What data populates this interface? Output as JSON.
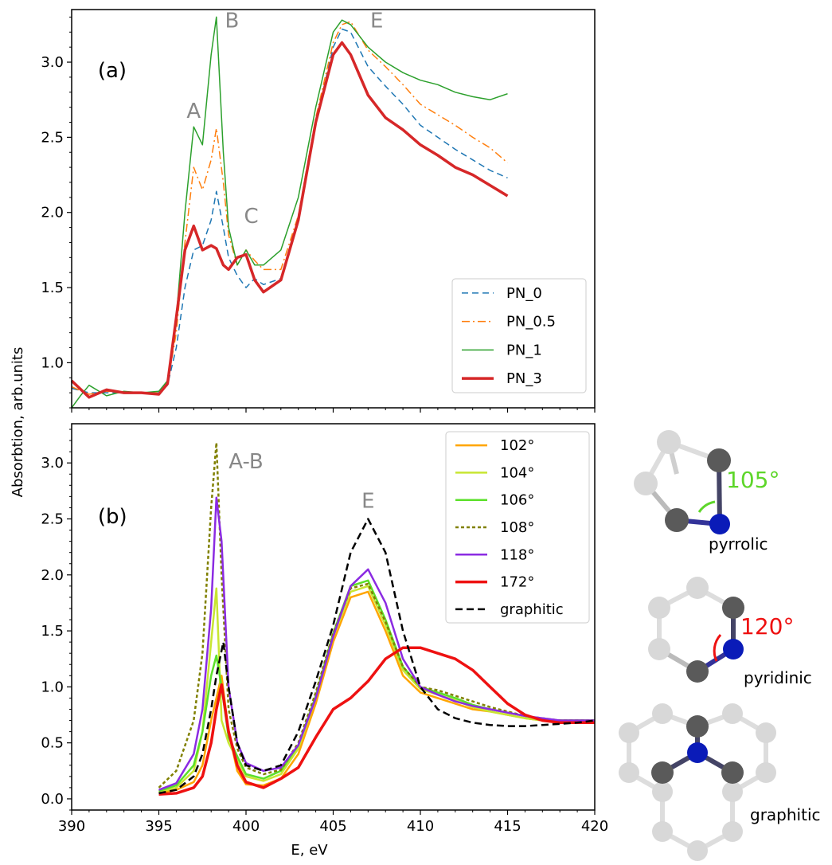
{
  "chart_data": [
    {
      "type": "line",
      "panel_label": "(a)",
      "xlim": [
        390,
        420
      ],
      "ylim": [
        0.7,
        3.35
      ],
      "yticks": [
        1.0,
        1.5,
        2.0,
        2.5,
        3.0
      ],
      "ytick_labels": [
        "1.0",
        "1.5",
        "2.0",
        "2.5",
        "3.0"
      ],
      "xticks": [
        390,
        395,
        400,
        405,
        410,
        415,
        420
      ],
      "show_x_tick_labels": false,
      "grid": false,
      "legend_position": "lower-right",
      "annotations": [
        {
          "text": "A",
          "x": 397.0,
          "y": 2.63
        },
        {
          "text": "B",
          "x": 399.2,
          "y": 3.23
        },
        {
          "text": "C",
          "x": 400.3,
          "y": 1.93
        },
        {
          "text": "E",
          "x": 407.5,
          "y": 3.23
        }
      ],
      "series": [
        {
          "name": "PN_0",
          "color": "#1f77b4",
          "dash": "8,5",
          "width": 1.5,
          "x": [
            390,
            391,
            392,
            393,
            394,
            395,
            395.5,
            396,
            396.5,
            397,
            397.5,
            398,
            398.3,
            398.7,
            399,
            399.5,
            400,
            400.5,
            401,
            402,
            403,
            404,
            405,
            405.5,
            406,
            407,
            408,
            409,
            410,
            411,
            412,
            413,
            414,
            415
          ],
          "y": [
            0.83,
            0.8,
            0.8,
            0.8,
            0.8,
            0.8,
            0.85,
            1.1,
            1.5,
            1.75,
            1.78,
            1.95,
            2.14,
            1.9,
            1.7,
            1.58,
            1.5,
            1.56,
            1.52,
            1.56,
            1.95,
            2.6,
            3.1,
            3.22,
            3.2,
            2.97,
            2.84,
            2.72,
            2.58,
            2.5,
            2.42,
            2.35,
            2.28,
            2.23
          ]
        },
        {
          "name": "PN_0.5",
          "color": "#ff7f0e",
          "dash": "10,4,2,4",
          "width": 1.5,
          "x": [
            390,
            391,
            392,
            393,
            394,
            395,
            395.5,
            396,
            396.5,
            397,
            397.5,
            398,
            398.3,
            398.7,
            399,
            399.5,
            400,
            400.5,
            401,
            402,
            403,
            404,
            405,
            405.5,
            406,
            407,
            408,
            409,
            410,
            411,
            412,
            413,
            414,
            415
          ],
          "y": [
            0.84,
            0.79,
            0.81,
            0.8,
            0.8,
            0.8,
            0.86,
            1.2,
            1.8,
            2.3,
            2.15,
            2.35,
            2.56,
            2.2,
            1.85,
            1.65,
            1.75,
            1.68,
            1.62,
            1.62,
            1.98,
            2.63,
            3.13,
            3.25,
            3.27,
            3.08,
            2.97,
            2.85,
            2.72,
            2.65,
            2.58,
            2.5,
            2.43,
            2.33
          ]
        },
        {
          "name": "PN_1",
          "color": "#2ca02c",
          "dash": "",
          "width": 1.5,
          "x": [
            390,
            390.5,
            391,
            392,
            393,
            394,
            395,
            395.5,
            396,
            396.5,
            397,
            397.5,
            398,
            398.3,
            398.7,
            399,
            399.5,
            400,
            400.5,
            401,
            402,
            403,
            404,
            405,
            405.5,
            406,
            407,
            408,
            409,
            410,
            411,
            412,
            413,
            414,
            415
          ],
          "y": [
            0.7,
            0.78,
            0.85,
            0.78,
            0.81,
            0.8,
            0.81,
            0.88,
            1.3,
            2.0,
            2.57,
            2.45,
            3.05,
            3.3,
            2.4,
            1.9,
            1.65,
            1.75,
            1.65,
            1.65,
            1.75,
            2.1,
            2.7,
            3.2,
            3.28,
            3.25,
            3.1,
            3.0,
            2.93,
            2.88,
            2.85,
            2.8,
            2.77,
            2.75,
            2.79
          ]
        },
        {
          "name": "PN_3",
          "color": "#d62728",
          "dash": "",
          "width": 3.5,
          "x": [
            390,
            391,
            392,
            393,
            394,
            395,
            395.5,
            396,
            396.5,
            397,
            397.5,
            398,
            398.3,
            398.7,
            399,
            399.5,
            400,
            400.5,
            401,
            402,
            403,
            404,
            405,
            405.5,
            406,
            407,
            408,
            409,
            410,
            411,
            412,
            413,
            414,
            415
          ],
          "y": [
            0.88,
            0.77,
            0.82,
            0.8,
            0.8,
            0.79,
            0.86,
            1.3,
            1.75,
            1.91,
            1.75,
            1.78,
            1.76,
            1.65,
            1.62,
            1.7,
            1.72,
            1.55,
            1.47,
            1.55,
            1.95,
            2.6,
            3.05,
            3.13,
            3.05,
            2.78,
            2.63,
            2.55,
            2.45,
            2.38,
            2.3,
            2.25,
            2.18,
            2.11
          ]
        }
      ]
    },
    {
      "type": "line",
      "panel_label": "(b)",
      "xlim": [
        390,
        420
      ],
      "ylim": [
        -0.1,
        3.35
      ],
      "yticks": [
        0.0,
        0.5,
        1.0,
        1.5,
        2.0,
        2.5,
        3.0
      ],
      "ytick_labels": [
        "0.0",
        "0.5",
        "1.0",
        "1.5",
        "2.0",
        "2.5",
        "3.0"
      ],
      "xticks": [
        390,
        395,
        400,
        405,
        410,
        415,
        420
      ],
      "xtick_labels": [
        "390",
        "395",
        "400",
        "405",
        "410",
        "415",
        "420"
      ],
      "xlabel": "E, eV",
      "grid": false,
      "legend_position": "upper-right",
      "annotations": [
        {
          "text": "A-B",
          "x": 400.0,
          "y": 2.95
        },
        {
          "text": "E",
          "x": 407.0,
          "y": 2.6
        }
      ],
      "series": [
        {
          "name": "102°",
          "color": "#ffa500",
          "dash": "",
          "width": 2.5,
          "x": [
            395,
            396,
            397,
            397.5,
            398,
            398.3,
            398.6,
            399,
            399.5,
            400,
            401,
            402,
            403,
            404,
            405,
            406,
            407,
            408,
            409,
            410,
            411,
            412,
            413,
            414,
            415,
            416,
            417,
            418,
            419,
            420
          ],
          "y": [
            0.05,
            0.08,
            0.15,
            0.3,
            0.7,
            0.9,
            1.1,
            0.6,
            0.25,
            0.13,
            0.12,
            0.18,
            0.4,
            0.85,
            1.4,
            1.8,
            1.85,
            1.5,
            1.1,
            0.95,
            0.9,
            0.85,
            0.8,
            0.78,
            0.75,
            0.72,
            0.7,
            0.7,
            0.7,
            0.7
          ]
        },
        {
          "name": "104°",
          "color": "#c8e632",
          "dash": "",
          "width": 2.5,
          "x": [
            395,
            396,
            397,
            397.5,
            398,
            398.3,
            398.6,
            399,
            399.5,
            400,
            401,
            402,
            403,
            404,
            405,
            406,
            407,
            408,
            409,
            410,
            411,
            412,
            413,
            414,
            415,
            416,
            417,
            418,
            419,
            420
          ],
          "y": [
            0.06,
            0.1,
            0.25,
            0.6,
            1.4,
            1.88,
            0.7,
            0.5,
            0.35,
            0.2,
            0.16,
            0.22,
            0.45,
            0.9,
            1.45,
            1.85,
            1.9,
            1.55,
            1.15,
            0.98,
            0.93,
            0.88,
            0.82,
            0.78,
            0.75,
            0.72,
            0.7,
            0.7,
            0.7,
            0.7
          ]
        },
        {
          "name": "106°",
          "color": "#5be02a",
          "dash": "",
          "width": 2.5,
          "x": [
            395,
            396,
            397,
            397.5,
            398,
            398.3,
            398.6,
            399,
            399.5,
            400,
            401,
            402,
            403,
            404,
            405,
            406,
            407,
            408,
            409,
            410,
            411,
            412,
            413,
            414,
            415,
            416,
            417,
            418,
            419,
            420
          ],
          "y": [
            0.07,
            0.12,
            0.3,
            0.6,
            1.1,
            1.28,
            1.0,
            0.55,
            0.38,
            0.22,
            0.18,
            0.25,
            0.48,
            0.92,
            1.48,
            1.9,
            1.95,
            1.6,
            1.18,
            1.0,
            0.95,
            0.9,
            0.84,
            0.8,
            0.77,
            0.74,
            0.71,
            0.7,
            0.7,
            0.7
          ]
        },
        {
          "name": "108°",
          "color": "#808000",
          "dash": "4,3",
          "width": 2.5,
          "x": [
            395,
            396,
            397,
            397.5,
            398,
            398.3,
            398.6,
            399,
            399.5,
            400,
            401,
            402,
            403,
            404,
            405,
            406,
            407,
            408,
            409,
            410,
            411,
            412,
            413,
            414,
            415,
            416,
            417,
            418,
            419,
            420
          ],
          "y": [
            0.1,
            0.25,
            0.7,
            1.3,
            2.6,
            3.18,
            2.0,
            0.8,
            0.45,
            0.28,
            0.22,
            0.26,
            0.5,
            0.95,
            1.48,
            1.88,
            1.92,
            1.58,
            1.18,
            1.0,
            0.97,
            0.92,
            0.87,
            0.82,
            0.78,
            0.74,
            0.72,
            0.7,
            0.7,
            0.7
          ]
        },
        {
          "name": "118°",
          "color": "#8b2be2",
          "dash": "",
          "width": 2.5,
          "x": [
            395,
            396,
            397,
            397.5,
            398,
            398.3,
            398.6,
            399,
            399.5,
            400,
            401,
            402,
            403,
            404,
            405,
            406,
            407,
            408,
            409,
            410,
            411,
            412,
            413,
            414,
            415,
            416,
            417,
            418,
            419,
            420
          ],
          "y": [
            0.08,
            0.14,
            0.4,
            0.8,
            1.7,
            2.69,
            2.3,
            1.0,
            0.5,
            0.32,
            0.25,
            0.28,
            0.48,
            0.9,
            1.45,
            1.9,
            2.05,
            1.75,
            1.25,
            1.0,
            0.93,
            0.87,
            0.83,
            0.8,
            0.77,
            0.74,
            0.72,
            0.7,
            0.7,
            0.7
          ]
        },
        {
          "name": "172°",
          "color": "#ee1111",
          "dash": "",
          "width": 3.5,
          "x": [
            395,
            396,
            397,
            397.5,
            398,
            398.3,
            398.6,
            399,
            399.5,
            400,
            401,
            402,
            403,
            404,
            405,
            406,
            407,
            408,
            409,
            410,
            411,
            412,
            413,
            414,
            415,
            416,
            417,
            418,
            419,
            420
          ],
          "y": [
            0.04,
            0.05,
            0.1,
            0.2,
            0.5,
            0.8,
            1.02,
            0.6,
            0.3,
            0.15,
            0.1,
            0.18,
            0.28,
            0.55,
            0.8,
            0.9,
            1.05,
            1.25,
            1.35,
            1.35,
            1.3,
            1.25,
            1.15,
            1.0,
            0.85,
            0.75,
            0.7,
            0.68,
            0.68,
            0.68
          ]
        },
        {
          "name": "graphitic",
          "color": "#000000",
          "dash": "9,5",
          "width": 2.5,
          "x": [
            395,
            396,
            397,
            397.5,
            398,
            398.3,
            398.7,
            399,
            399.5,
            400,
            401,
            402,
            403,
            404,
            405,
            406,
            407,
            408,
            409,
            410,
            411,
            412,
            413,
            414,
            415,
            416,
            417,
            418,
            419,
            420
          ],
          "y": [
            0.05,
            0.08,
            0.2,
            0.4,
            0.8,
            1.1,
            1.4,
            1.0,
            0.5,
            0.3,
            0.25,
            0.3,
            0.6,
            1.05,
            1.55,
            2.2,
            2.5,
            2.2,
            1.5,
            1.0,
            0.8,
            0.72,
            0.68,
            0.66,
            0.65,
            0.65,
            0.66,
            0.67,
            0.68,
            0.7
          ]
        }
      ]
    }
  ],
  "y_axis_label": "Absorbtion, arb.units",
  "molecules": [
    {
      "label": "pyrrolic",
      "angle_label": "105°",
      "angle_color": "#5ed62a"
    },
    {
      "label": "pyridinic",
      "angle_label": "120°",
      "angle_color": "#ee1111"
    },
    {
      "label": "graphitic"
    }
  ]
}
